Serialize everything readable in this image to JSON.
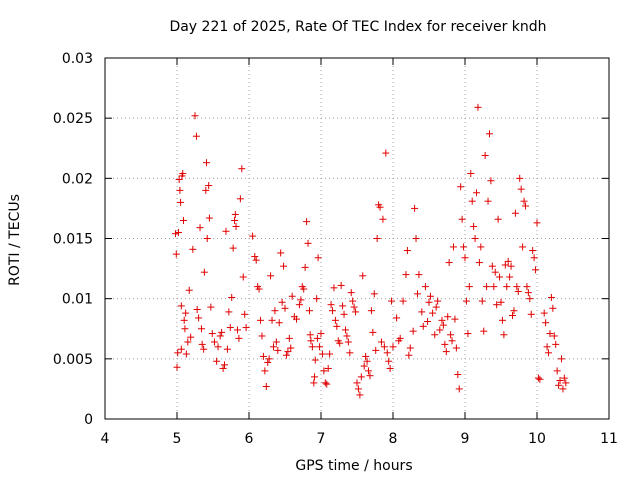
{
  "chart_data": {
    "type": "scatter",
    "title": "Day 221 of 2025, Rate Of TEC Index for receiver kndh",
    "xlabel": "GPS time / hours",
    "ylabel": "ROTI / TECUs",
    "xlim": [
      4,
      11
    ],
    "ylim": [
      0,
      0.03
    ],
    "xticks": [
      4,
      5,
      6,
      7,
      8,
      9,
      10,
      11
    ],
    "xtick_labels": [
      "4",
      "5",
      "6",
      "7",
      "8",
      "9",
      "10",
      "11"
    ],
    "yticks": [
      0,
      0.005,
      0.01,
      0.015,
      0.02,
      0.025,
      0.03
    ],
    "ytick_labels": [
      "0",
      "0.005",
      "0.01",
      "0.015",
      "0.02",
      "0.025",
      "0.03"
    ],
    "grid": true,
    "marker": "plus",
    "color": "#e00000",
    "series": [
      {
        "name": "ROTI",
        "points": [
          [
            4.98,
            0.0154
          ],
          [
            4.99,
            0.0137
          ],
          [
            5.0,
            0.0043
          ],
          [
            5.01,
            0.0055
          ],
          [
            5.02,
            0.0155
          ],
          [
            5.03,
            0.0199
          ],
          [
            5.04,
            0.019
          ],
          [
            5.05,
            0.018
          ],
          [
            5.06,
            0.0094
          ],
          [
            5.06,
            0.0058
          ],
          [
            5.07,
            0.0202
          ],
          [
            5.08,
            0.0204
          ],
          [
            5.09,
            0.0165
          ],
          [
            5.1,
            0.0082
          ],
          [
            5.11,
            0.0075
          ],
          [
            5.12,
            0.0088
          ],
          [
            5.13,
            0.0054
          ],
          [
            5.15,
            0.0064
          ],
          [
            5.17,
            0.0107
          ],
          [
            5.19,
            0.0068
          ],
          [
            5.22,
            0.0141
          ],
          [
            5.25,
            0.0252
          ],
          [
            5.27,
            0.0235
          ],
          [
            5.28,
            0.0091
          ],
          [
            5.3,
            0.0084
          ],
          [
            5.32,
            0.0159
          ],
          [
            5.34,
            0.0075
          ],
          [
            5.35,
            0.0062
          ],
          [
            5.37,
            0.0058
          ],
          [
            5.38,
            0.0122
          ],
          [
            5.4,
            0.019
          ],
          [
            5.41,
            0.0213
          ],
          [
            5.42,
            0.015
          ],
          [
            5.44,
            0.0194
          ],
          [
            5.45,
            0.0167
          ],
          [
            5.47,
            0.0093
          ],
          [
            5.49,
            0.0071
          ],
          [
            5.52,
            0.0064
          ],
          [
            5.55,
            0.0048
          ],
          [
            5.57,
            0.006
          ],
          [
            5.6,
            0.0069
          ],
          [
            5.62,
            0.0072
          ],
          [
            5.64,
            0.0042
          ],
          [
            5.66,
            0.0045
          ],
          [
            5.68,
            0.0156
          ],
          [
            5.7,
            0.0058
          ],
          [
            5.72,
            0.0089
          ],
          [
            5.74,
            0.0076
          ],
          [
            5.76,
            0.0101
          ],
          [
            5.78,
            0.0142
          ],
          [
            5.8,
            0.0165
          ],
          [
            5.81,
            0.017
          ],
          [
            5.82,
            0.016
          ],
          [
            5.84,
            0.0074
          ],
          [
            5.86,
            0.0067
          ],
          [
            5.88,
            0.0183
          ],
          [
            5.9,
            0.0208
          ],
          [
            5.92,
            0.0118
          ],
          [
            5.94,
            0.0087
          ],
          [
            5.96,
            0.0076
          ],
          [
            6.05,
            0.0152
          ],
          [
            6.08,
            0.0135
          ],
          [
            6.1,
            0.0132
          ],
          [
            6.12,
            0.011
          ],
          [
            6.14,
            0.0108
          ],
          [
            6.16,
            0.0082
          ],
          [
            6.18,
            0.0069
          ],
          [
            6.2,
            0.0052
          ],
          [
            6.22,
            0.004
          ],
          [
            6.24,
            0.0027
          ],
          [
            6.26,
            0.0047
          ],
          [
            6.28,
            0.005
          ],
          [
            6.3,
            0.0119
          ],
          [
            6.32,
            0.0082
          ],
          [
            6.34,
            0.006
          ],
          [
            6.36,
            0.009
          ],
          [
            6.38,
            0.0064
          ],
          [
            6.4,
            0.0057
          ],
          [
            6.42,
            0.008
          ],
          [
            6.44,
            0.0138
          ],
          [
            6.46,
            0.0097
          ],
          [
            6.48,
            0.0127
          ],
          [
            6.5,
            0.0092
          ],
          [
            6.52,
            0.0053
          ],
          [
            6.54,
            0.0056
          ],
          [
            6.56,
            0.0067
          ],
          [
            6.58,
            0.0059
          ],
          [
            6.6,
            0.0102
          ],
          [
            6.63,
            0.0085
          ],
          [
            6.66,
            0.0083
          ],
          [
            6.7,
            0.0095
          ],
          [
            6.72,
            0.0099
          ],
          [
            6.74,
            0.011
          ],
          [
            6.76,
            0.0108
          ],
          [
            6.78,
            0.0126
          ],
          [
            6.8,
            0.0164
          ],
          [
            6.82,
            0.0146
          ],
          [
            6.84,
            0.009
          ],
          [
            6.85,
            0.007
          ],
          [
            6.86,
            0.0065
          ],
          [
            6.88,
            0.006
          ],
          [
            6.9,
            0.003
          ],
          [
            6.91,
            0.0035
          ],
          [
            6.92,
            0.0049
          ],
          [
            6.94,
            0.01
          ],
          [
            6.95,
            0.0067
          ],
          [
            6.96,
            0.0134
          ],
          [
            6.98,
            0.006
          ],
          [
            7.0,
            0.0071
          ],
          [
            7.02,
            0.0054
          ],
          [
            7.04,
            0.004
          ],
          [
            7.06,
            0.003
          ],
          [
            7.08,
            0.0029
          ],
          [
            7.1,
            0.0042
          ],
          [
            7.12,
            0.0054
          ],
          [
            7.14,
            0.0095
          ],
          [
            7.16,
            0.009
          ],
          [
            7.18,
            0.0109
          ],
          [
            7.2,
            0.0082
          ],
          [
            7.22,
            0.0077
          ],
          [
            7.24,
            0.0065
          ],
          [
            7.26,
            0.0063
          ],
          [
            7.28,
            0.0111
          ],
          [
            7.3,
            0.0094
          ],
          [
            7.32,
            0.0087
          ],
          [
            7.34,
            0.0074
          ],
          [
            7.36,
            0.0069
          ],
          [
            7.38,
            0.0064
          ],
          [
            7.4,
            0.0055
          ],
          [
            7.42,
            0.0105
          ],
          [
            7.44,
            0.0098
          ],
          [
            7.46,
            0.0093
          ],
          [
            7.48,
            0.0089
          ],
          [
            7.5,
            0.003
          ],
          [
            7.52,
            0.0025
          ],
          [
            7.54,
            0.002
          ],
          [
            7.56,
            0.0035
          ],
          [
            7.58,
            0.0119
          ],
          [
            7.6,
            0.0044
          ],
          [
            7.62,
            0.0052
          ],
          [
            7.64,
            0.0048
          ],
          [
            7.66,
            0.004
          ],
          [
            7.68,
            0.0036
          ],
          [
            7.7,
            0.009
          ],
          [
            7.72,
            0.0072
          ],
          [
            7.74,
            0.0104
          ],
          [
            7.76,
            0.0057
          ],
          [
            7.78,
            0.015
          ],
          [
            7.8,
            0.0178
          ],
          [
            7.82,
            0.0176
          ],
          [
            7.84,
            0.0064
          ],
          [
            7.86,
            0.0166
          ],
          [
            7.88,
            0.006
          ],
          [
            7.9,
            0.0221
          ],
          [
            7.92,
            0.0055
          ],
          [
            7.94,
            0.0048
          ],
          [
            7.96,
            0.0042
          ],
          [
            7.98,
            0.0098
          ],
          [
            8.0,
            0.006
          ],
          [
            8.05,
            0.0084
          ],
          [
            8.08,
            0.0065
          ],
          [
            8.1,
            0.0067
          ],
          [
            8.14,
            0.0098
          ],
          [
            8.18,
            0.012
          ],
          [
            8.2,
            0.014
          ],
          [
            8.22,
            0.0053
          ],
          [
            8.24,
            0.0059
          ],
          [
            8.28,
            0.0073
          ],
          [
            8.3,
            0.0175
          ],
          [
            8.32,
            0.015
          ],
          [
            8.34,
            0.0104
          ],
          [
            8.36,
            0.012
          ],
          [
            8.4,
            0.0089
          ],
          [
            8.42,
            0.0077
          ],
          [
            8.45,
            0.011
          ],
          [
            8.48,
            0.0081
          ],
          [
            8.5,
            0.0097
          ],
          [
            8.52,
            0.0102
          ],
          [
            8.55,
            0.0088
          ],
          [
            8.58,
            0.007
          ],
          [
            8.6,
            0.0093
          ],
          [
            8.62,
            0.0098
          ],
          [
            8.65,
            0.0074
          ],
          [
            8.68,
            0.0082
          ],
          [
            8.7,
            0.0078
          ],
          [
            8.72,
            0.0062
          ],
          [
            8.74,
            0.0056
          ],
          [
            8.76,
            0.0085
          ],
          [
            8.78,
            0.013
          ],
          [
            8.8,
            0.007
          ],
          [
            8.82,
            0.0065
          ],
          [
            8.84,
            0.0143
          ],
          [
            8.86,
            0.0083
          ],
          [
            8.88,
            0.0059
          ],
          [
            8.9,
            0.0037
          ],
          [
            8.92,
            0.0025
          ],
          [
            8.94,
            0.0193
          ],
          [
            8.96,
            0.0166
          ],
          [
            8.98,
            0.0143
          ],
          [
            9.0,
            0.0134
          ],
          [
            9.02,
            0.0098
          ],
          [
            9.04,
            0.0071
          ],
          [
            9.06,
            0.011
          ],
          [
            9.08,
            0.0204
          ],
          [
            9.1,
            0.0181
          ],
          [
            9.12,
            0.016
          ],
          [
            9.14,
            0.015
          ],
          [
            9.16,
            0.0188
          ],
          [
            9.18,
            0.0259
          ],
          [
            9.2,
            0.013
          ],
          [
            9.22,
            0.0143
          ],
          [
            9.24,
            0.0098
          ],
          [
            9.26,
            0.0073
          ],
          [
            9.28,
            0.0219
          ],
          [
            9.3,
            0.011
          ],
          [
            9.32,
            0.0181
          ],
          [
            9.34,
            0.0237
          ],
          [
            9.36,
            0.0198
          ],
          [
            9.38,
            0.0127
          ],
          [
            9.4,
            0.011
          ],
          [
            9.42,
            0.0122
          ],
          [
            9.44,
            0.0095
          ],
          [
            9.46,
            0.0166
          ],
          [
            9.48,
            0.0118
          ],
          [
            9.5,
            0.0097
          ],
          [
            9.52,
            0.0082
          ],
          [
            9.54,
            0.007
          ],
          [
            9.56,
            0.0128
          ],
          [
            9.58,
            0.011
          ],
          [
            9.6,
            0.0131
          ],
          [
            9.62,
            0.0118
          ],
          [
            9.64,
            0.0127
          ],
          [
            9.66,
            0.0086
          ],
          [
            9.68,
            0.009
          ],
          [
            9.7,
            0.0171
          ],
          [
            9.72,
            0.011
          ],
          [
            9.74,
            0.0106
          ],
          [
            9.76,
            0.02
          ],
          [
            9.78,
            0.0191
          ],
          [
            9.8,
            0.0143
          ],
          [
            9.82,
            0.0181
          ],
          [
            9.84,
            0.0177
          ],
          [
            9.86,
            0.011
          ],
          [
            9.88,
            0.0105
          ],
          [
            9.9,
            0.01
          ],
          [
            9.92,
            0.0087
          ],
          [
            9.94,
            0.014
          ],
          [
            9.96,
            0.0134
          ],
          [
            9.98,
            0.0124
          ],
          [
            10.0,
            0.0163
          ],
          [
            10.02,
            0.0034
          ],
          [
            10.04,
            0.0033
          ],
          [
            10.1,
            0.0088
          ],
          [
            10.12,
            0.008
          ],
          [
            10.14,
            0.006
          ],
          [
            10.16,
            0.0055
          ],
          [
            10.18,
            0.0071
          ],
          [
            10.2,
            0.0101
          ],
          [
            10.22,
            0.0092
          ],
          [
            10.24,
            0.0069
          ],
          [
            10.26,
            0.0062
          ],
          [
            10.28,
            0.004
          ],
          [
            10.3,
            0.0028
          ],
          [
            10.32,
            0.0032
          ],
          [
            10.34,
            0.005
          ],
          [
            10.36,
            0.0025
          ],
          [
            10.38,
            0.0034
          ],
          [
            10.4,
            0.003
          ]
        ]
      }
    ]
  }
}
